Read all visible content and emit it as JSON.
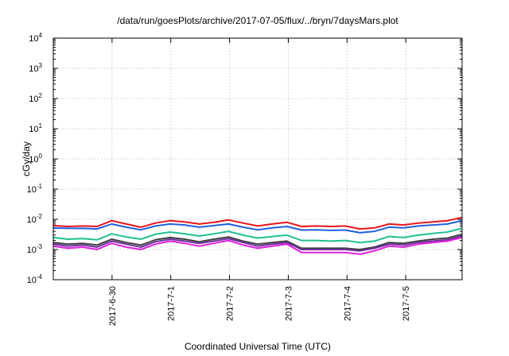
{
  "chart_data": {
    "type": "line",
    "title": "/data/run/goesPlots/archive/2017-07-05/flux/../bryn/7daysMars.plot",
    "xlabel": "Coordinated Universal Time (UTC)",
    "ylabel": "cGy/day",
    "y_scale": "log",
    "ylim": [
      0.0001,
      10000
    ],
    "y_ticks": [
      {
        "base": "10",
        "exp": "-4"
      },
      {
        "base": "10",
        "exp": "-3"
      },
      {
        "base": "10",
        "exp": "-2"
      },
      {
        "base": "10",
        "exp": "-1"
      },
      {
        "base": "10",
        "exp": "0"
      },
      {
        "base": "10",
        "exp": "1"
      },
      {
        "base": "10",
        "exp": "2"
      },
      {
        "base": "10",
        "exp": "3"
      },
      {
        "base": "10",
        "exp": "4"
      }
    ],
    "x_range_days": [
      "2017-06-29T00:00",
      "2017-07-05T23:00"
    ],
    "x_ticks": [
      "2017-6-30",
      "2017-7-1",
      "2017-7-2",
      "2017-7-3",
      "2017-7-4",
      "2017-7-5"
    ],
    "x": [
      "06-29 00h",
      "06-29 06h",
      "06-29 12h",
      "06-29 18h",
      "06-30 00h",
      "06-30 06h",
      "06-30 12h",
      "06-30 18h",
      "07-01 00h",
      "07-01 06h",
      "07-01 12h",
      "07-01 18h",
      "07-02 00h",
      "07-02 06h",
      "07-02 12h",
      "07-02 18h",
      "07-03 00h",
      "07-03 06h",
      "07-03 12h",
      "07-03 18h",
      "07-04 00h",
      "07-04 06h",
      "07-04 12h",
      "07-04 18h",
      "07-05 00h",
      "07-05 06h",
      "07-05 12h",
      "07-05 18h",
      "07-05 23h"
    ],
    "grid": true,
    "series": [
      {
        "color": "#e8151b",
        "values": [
          0.0062,
          0.0058,
          0.006,
          0.0058,
          0.009,
          0.007,
          0.0055,
          0.0075,
          0.009,
          0.0082,
          0.007,
          0.008,
          0.0095,
          0.0075,
          0.006,
          0.007,
          0.008,
          0.0058,
          0.006,
          0.0058,
          0.006,
          0.0048,
          0.0052,
          0.007,
          0.0065,
          0.0075,
          0.0082,
          0.009,
          0.0115
        ]
      },
      {
        "color": "#2060e0",
        "values": [
          0.0052,
          0.005,
          0.005,
          0.0048,
          0.007,
          0.0055,
          0.0045,
          0.006,
          0.007,
          0.0065,
          0.0055,
          0.0062,
          0.007,
          0.0055,
          0.0045,
          0.0052,
          0.0058,
          0.0044,
          0.0045,
          0.0043,
          0.0044,
          0.0036,
          0.004,
          0.0055,
          0.0052,
          0.006,
          0.0065,
          0.007,
          0.009
        ]
      },
      {
        "color": "#20c090",
        "values": [
          0.0025,
          0.0022,
          0.0023,
          0.0021,
          0.0033,
          0.0026,
          0.0022,
          0.0032,
          0.0038,
          0.0033,
          0.0028,
          0.0033,
          0.004,
          0.003,
          0.0024,
          0.0027,
          0.003,
          0.002,
          0.002,
          0.0019,
          0.002,
          0.0017,
          0.0019,
          0.0027,
          0.0025,
          0.003,
          0.0034,
          0.0038,
          0.005
        ]
      },
      {
        "color": "#404040",
        "values": [
          0.0017,
          0.0015,
          0.0016,
          0.0014,
          0.0022,
          0.0017,
          0.0014,
          0.0021,
          0.0025,
          0.0022,
          0.0018,
          0.0022,
          0.0026,
          0.0019,
          0.0015,
          0.0017,
          0.0019,
          0.0011,
          0.0011,
          0.0011,
          0.0011,
          0.001,
          0.0012,
          0.0017,
          0.0016,
          0.0019,
          0.0022,
          0.0024,
          0.0032
        ]
      },
      {
        "color": "#7030a0",
        "values": [
          0.0015,
          0.0013,
          0.0014,
          0.0012,
          0.0019,
          0.0015,
          0.0012,
          0.0018,
          0.0022,
          0.0019,
          0.0016,
          0.0019,
          0.0023,
          0.0017,
          0.0013,
          0.0015,
          0.0017,
          0.001,
          0.001,
          0.001,
          0.001,
          0.0009,
          0.0011,
          0.0015,
          0.0014,
          0.0017,
          0.0019,
          0.0021,
          0.0028
        ]
      },
      {
        "color": "#e020e0",
        "values": [
          0.0013,
          0.0011,
          0.0012,
          0.001,
          0.0016,
          0.0012,
          0.001,
          0.0015,
          0.0019,
          0.0016,
          0.0013,
          0.0016,
          0.002,
          0.0014,
          0.0011,
          0.0013,
          0.0015,
          0.0008,
          0.0008,
          0.0008,
          0.0008,
          0.0007,
          0.0009,
          0.0013,
          0.0012,
          0.0015,
          0.0017,
          0.0019,
          0.0025
        ]
      }
    ]
  }
}
